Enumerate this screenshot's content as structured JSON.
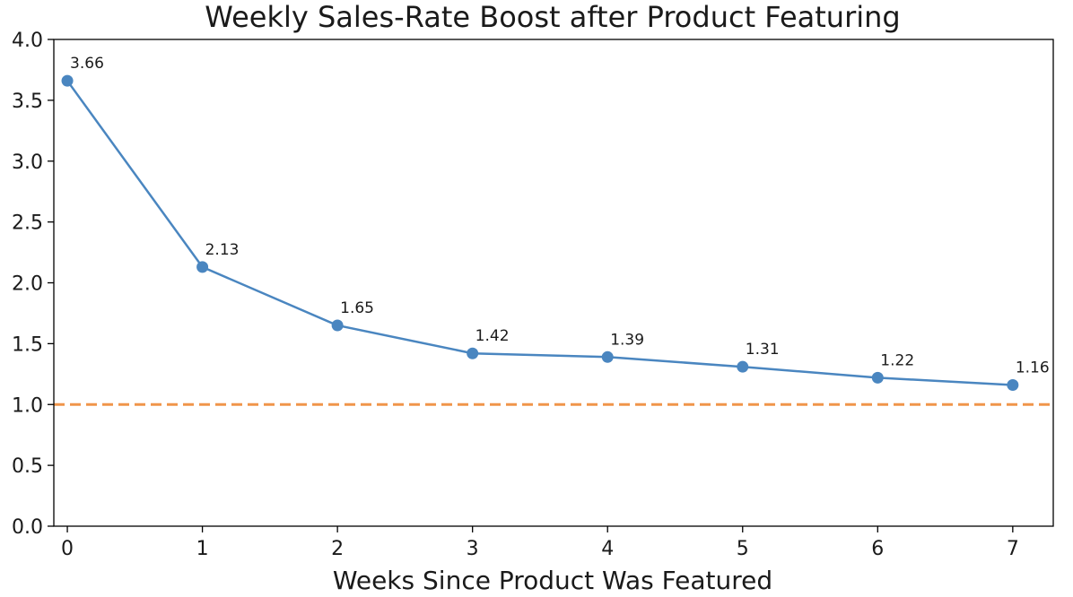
{
  "chart_data": {
    "type": "line",
    "title": "Weekly Sales-Rate Boost after Product Featuring",
    "xlabel": "Weeks Since Product Was Featured",
    "ylabel": "",
    "x": [
      0,
      1,
      2,
      3,
      4,
      5,
      6,
      7
    ],
    "series": [
      {
        "values": [
          3.66,
          2.13,
          1.65,
          1.42,
          1.39,
          1.31,
          1.22,
          1.16
        ],
        "data_labels": [
          "3.66",
          "2.13",
          "1.65",
          "1.42",
          "1.39",
          "1.31",
          "1.22",
          "1.16"
        ],
        "color": "#4a86c0",
        "marker": "circle"
      }
    ],
    "reference_line": {
      "y": 1.0,
      "style": "dashed",
      "color": "#f0954a"
    },
    "xlim": [
      -0.1,
      7.3
    ],
    "ylim": [
      0.0,
      4.0
    ],
    "xticks": [
      "0",
      "1",
      "2",
      "3",
      "4",
      "5",
      "6",
      "7"
    ],
    "yticks": [
      "0.0",
      "0.5",
      "1.0",
      "1.5",
      "2.0",
      "2.5",
      "3.0",
      "3.5",
      "4.0"
    ],
    "grid": false,
    "legend": "none"
  }
}
